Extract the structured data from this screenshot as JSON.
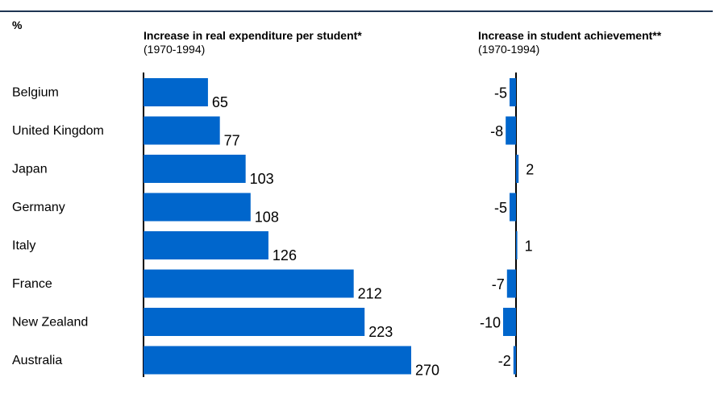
{
  "header": {
    "unit": "%",
    "left_title": "Increase in real expenditure per student*",
    "left_subtitle": "(1970-1994)",
    "right_title": "Increase in student achievement**",
    "right_subtitle": "(1970-1994)"
  },
  "colors": {
    "bar": "#0066cc",
    "rule": "#1f3553"
  },
  "chart_data": [
    {
      "type": "bar",
      "orientation": "horizontal",
      "title": "Increase in real expenditure per student*",
      "subtitle": "(1970-1994)",
      "categories": [
        "Belgium",
        "United Kingdom",
        "Japan",
        "Germany",
        "Italy",
        "France",
        "New Zealand",
        "Australia"
      ],
      "values": [
        65,
        77,
        103,
        108,
        126,
        212,
        223,
        270
      ],
      "xlim": [
        0,
        270
      ]
    },
    {
      "type": "bar",
      "orientation": "horizontal",
      "title": "Increase in student achievement**",
      "subtitle": "(1970-1994)",
      "categories": [
        "Belgium",
        "United Kingdom",
        "Japan",
        "Germany",
        "Italy",
        "France",
        "New Zealand",
        "Australia"
      ],
      "values": [
        -5,
        -8,
        2,
        -5,
        1,
        -7,
        -10,
        -2
      ],
      "xlim": [
        -10,
        2
      ]
    }
  ]
}
